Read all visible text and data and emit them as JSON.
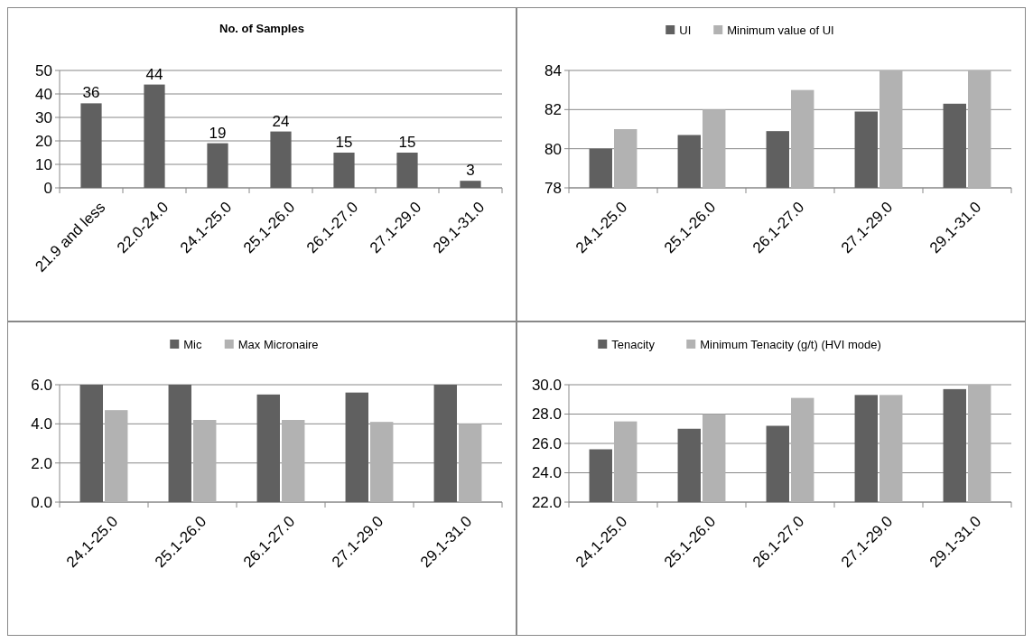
{
  "chart_data": [
    {
      "type": "bar",
      "title": "No. of Samples",
      "categories": [
        "21.9 and less",
        "22.0-24.0",
        "24.1-25.0",
        "25.1-26.0",
        "26.1-27.0",
        "27.1-29.0",
        "29.1-31.0"
      ],
      "values": [
        36,
        44,
        19,
        24,
        15,
        15,
        3
      ],
      "color": "#606060",
      "ylim": [
        0,
        50
      ],
      "yticks": [
        0,
        10,
        20,
        30,
        40,
        50
      ],
      "grid": "y",
      "data_labels": true,
      "legend": false
    },
    {
      "type": "bar",
      "categories": [
        "24.1-25.0",
        "25.1-26.0",
        "26.1-27.0",
        "27.1-29.0",
        "29.1-31.0"
      ],
      "series": [
        {
          "name": "UI",
          "color": "#606060",
          "values": [
            80.0,
            80.7,
            80.9,
            81.9,
            82.3
          ]
        },
        {
          "name": "Minimum value of UI",
          "color": "#b2b2b2",
          "values": [
            81,
            82,
            83,
            84,
            84
          ]
        }
      ],
      "ylim": [
        78,
        84
      ],
      "yticks": [
        78,
        80,
        82,
        84
      ],
      "grid": "y",
      "legend": "top"
    },
    {
      "type": "bar",
      "categories": [
        "24.1-25.0",
        "25.1-26.0",
        "26.1-27.0",
        "27.1-29.0",
        "29.1-31.0"
      ],
      "series": [
        {
          "name": "Mic",
          "color": "#606060",
          "values": [
            6.0,
            6.0,
            5.5,
            5.6,
            6.0
          ]
        },
        {
          "name": "Max Micronaire",
          "color": "#b2b2b2",
          "values": [
            4.7,
            4.2,
            4.2,
            4.1,
            4.0
          ]
        }
      ],
      "ylim": [
        0,
        6
      ],
      "yticks": [
        {
          "value": 0,
          "label": "0.0"
        },
        {
          "value": 2,
          "label": "2.0"
        },
        {
          "value": 4,
          "label": "4.0"
        },
        {
          "value": 6,
          "label": "6.0"
        }
      ],
      "grid": "y",
      "legend": "top"
    },
    {
      "type": "bar",
      "categories": [
        "24.1-25.0",
        "25.1-26.0",
        "26.1-27.0",
        "27.1-29.0",
        "29.1-31.0"
      ],
      "series": [
        {
          "name": "Tenacity",
          "color": "#606060",
          "values": [
            25.6,
            27.0,
            27.2,
            29.3,
            29.7
          ]
        },
        {
          "name": "Minimum Tenacity (g/t) (HVI mode)",
          "color": "#b2b2b2",
          "values": [
            27.5,
            28.0,
            29.1,
            29.3,
            30.0
          ]
        }
      ],
      "ylim": [
        22,
        30
      ],
      "yticks": [
        {
          "value": 22,
          "label": "22.0"
        },
        {
          "value": 24,
          "label": "24.0"
        },
        {
          "value": 26,
          "label": "26.0"
        },
        {
          "value": 28,
          "label": "28.0"
        },
        {
          "value": 30,
          "label": "30.0"
        }
      ],
      "grid": "y",
      "legend": "top"
    }
  ]
}
